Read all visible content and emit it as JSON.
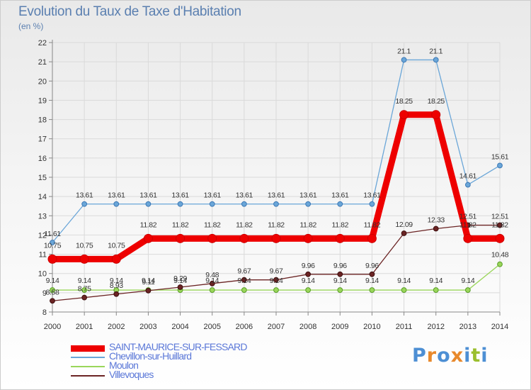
{
  "title": "Evolution du Taux de Taxe d'Habitation",
  "subtitle": "(en %)",
  "logo": {
    "text": "Proxiti",
    "letter_colors": [
      "#4d8fd4",
      "#e8892c",
      "#4d8fd4",
      "#e8892c",
      "#4d8fd4",
      "#9bbf2e",
      "#4d8fd4"
    ]
  },
  "chart_data": {
    "type": "line",
    "title": "Evolution du Taux de Taxe d'Habitation",
    "ylabel": "(en %)",
    "x": [
      "2000",
      "2001",
      "2002",
      "2003",
      "2004",
      "2005",
      "2006",
      "2007",
      "2008",
      "2009",
      "2010",
      "2011",
      "2012",
      "2013",
      "2014"
    ],
    "ylim": [
      8,
      22
    ],
    "yticks": [
      "8",
      "9",
      "10",
      "11",
      "12",
      "13",
      "14",
      "15",
      "16",
      "17",
      "18",
      "19",
      "20",
      "21",
      "22"
    ],
    "grid": true,
    "legend_position": "bottom-left",
    "series": [
      {
        "name": "SAINT-MAURICE-SUR-FESSARD",
        "color": "#ee0000",
        "values": [
          10.75,
          10.75,
          10.75,
          11.82,
          11.82,
          11.82,
          11.82,
          11.82,
          11.82,
          11.82,
          11.82,
          18.25,
          18.25,
          11.82,
          11.82
        ],
        "labels": [
          "10.75",
          "10.75",
          "10.75",
          "11.82",
          "11.82",
          "11.82",
          "11.82",
          "11.82",
          "11.82",
          "11.82",
          "11.82",
          "18.25",
          "18.25",
          "11.82",
          "11.82"
        ]
      },
      {
        "name": "Chevillon-sur-Huillard",
        "color": "#6aa6d8",
        "values": [
          11.61,
          13.61,
          13.61,
          13.61,
          13.61,
          13.61,
          13.61,
          13.61,
          13.61,
          13.61,
          13.61,
          21.1,
          21.1,
          14.61,
          15.61
        ],
        "labels": [
          "11.61",
          "13.61",
          "13.61",
          "13.61",
          "13.61",
          "13.61",
          "13.61",
          "13.61",
          "13.61",
          "13.61",
          "13.61",
          "21.1",
          "21.1",
          "14.61",
          "15.61"
        ]
      },
      {
        "name": "Moulon",
        "color": "#9ad65a",
        "values": [
          9.14,
          9.14,
          9.14,
          9.14,
          9.14,
          9.14,
          9.14,
          9.14,
          9.14,
          9.14,
          9.14,
          9.14,
          9.14,
          9.14,
          10.48
        ],
        "labels": [
          "9.14",
          "9.14",
          "9.14",
          "9.14",
          "9.14",
          "9.14",
          "9.14",
          "9.14",
          "9.14",
          "9.14",
          "9.14",
          "9.14",
          "9.14",
          "9.14",
          "10.48"
        ]
      },
      {
        "name": "Villevoques",
        "color": "#6b2424",
        "values": [
          8.58,
          8.75,
          8.93,
          9.11,
          9.29,
          9.48,
          9.67,
          9.67,
          9.96,
          9.96,
          9.96,
          12.09,
          12.33,
          12.51,
          12.51
        ],
        "labels": [
          "8.58",
          "8.75",
          "8.93",
          "9.11",
          "9.29",
          "9.48",
          "9.67",
          "9.67",
          "9.96",
          "9.96",
          "9.96",
          "12.09",
          "12.33",
          "12.51",
          "12.51"
        ]
      }
    ]
  }
}
